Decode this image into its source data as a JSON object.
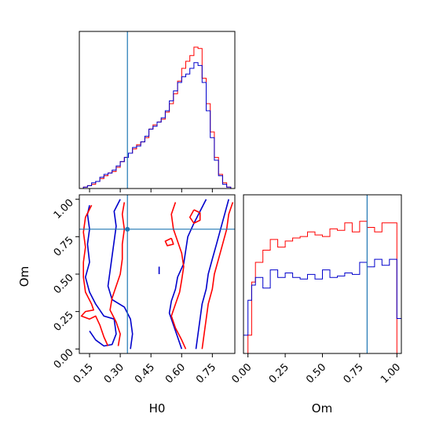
{
  "chart_data": {
    "type": "corner",
    "parameters": [
      "H0",
      "Om"
    ],
    "colors": {
      "red": "#ff0000",
      "blue": "#0000cc",
      "truth": "#1f77b4"
    },
    "truth": {
      "H0": 0.335,
      "Om": 0.8
    },
    "panels": {
      "H0_hist": {
        "xlim": [
          0.1,
          0.86
        ],
        "bin_edges": [
          0.1,
          0.12,
          0.14,
          0.16,
          0.18,
          0.2,
          0.22,
          0.24,
          0.26,
          0.28,
          0.3,
          0.32,
          0.34,
          0.36,
          0.38,
          0.4,
          0.42,
          0.44,
          0.46,
          0.48,
          0.5,
          0.52,
          0.54,
          0.56,
          0.58,
          0.6,
          0.62,
          0.64,
          0.66,
          0.68,
          0.7,
          0.72,
          0.74,
          0.76,
          0.78,
          0.8,
          0.82,
          0.84,
          0.86
        ],
        "series": [
          {
            "color": "red",
            "values": [
              0,
              0.01,
              0.02,
              0.03,
              0.05,
              0.07,
              0.09,
              0.11,
              0.12,
              0.15,
              0.19,
              0.22,
              0.25,
              0.28,
              0.31,
              0.33,
              0.36,
              0.42,
              0.45,
              0.47,
              0.49,
              0.54,
              0.6,
              0.67,
              0.76,
              0.85,
              0.9,
              0.94,
              1.0,
              0.99,
              0.78,
              0.6,
              0.4,
              0.22,
              0.1,
              0.04,
              0.01,
              0
            ]
          },
          {
            "color": "blue",
            "values": [
              0,
              0.01,
              0.02,
              0.04,
              0.05,
              0.08,
              0.1,
              0.11,
              0.13,
              0.16,
              0.19,
              0.22,
              0.25,
              0.29,
              0.3,
              0.33,
              0.37,
              0.42,
              0.44,
              0.47,
              0.5,
              0.55,
              0.62,
              0.69,
              0.75,
              0.79,
              0.81,
              0.85,
              0.89,
              0.87,
              0.75,
              0.55,
              0.36,
              0.2,
              0.09,
              0.03,
              0.01,
              0
            ]
          }
        ]
      },
      "Om_hist": {
        "xlim": [
          -0.03,
          1.03
        ],
        "bin_edges": [
          -0.03,
          0.0,
          0.025,
          0.05,
          0.1,
          0.15,
          0.2,
          0.25,
          0.3,
          0.35,
          0.4,
          0.45,
          0.5,
          0.55,
          0.6,
          0.65,
          0.7,
          0.75,
          0.8,
          0.85,
          0.9,
          0.95,
          1.0,
          1.03
        ],
        "series": [
          {
            "color": "red",
            "values": [
              0,
              0.12,
              0.47,
              0.6,
              0.68,
              0.75,
              0.7,
              0.74,
              0.76,
              0.77,
              0.8,
              0.78,
              0.77,
              0.82,
              0.81,
              0.86,
              0.8,
              0.87,
              0.83,
              0.8,
              0.86,
              0.86,
              0
            ]
          },
          {
            "color": "blue",
            "values": [
              0.12,
              0.35,
              0.45,
              0.5,
              0.43,
              0.55,
              0.5,
              0.53,
              0.5,
              0.49,
              0.52,
              0.49,
              0.55,
              0.5,
              0.51,
              0.53,
              0.52,
              0.6,
              0.57,
              0.62,
              0.58,
              0.62,
              0.23
            ]
          }
        ]
      },
      "joint": {
        "xlim": [
          0.1,
          0.86
        ],
        "ylim": [
          -0.03,
          1.03
        ],
        "contours": [
          {
            "color": "blue",
            "level": "inner",
            "points": [
              [
                0.15,
                0.96
              ],
              [
                0.14,
                0.9
              ],
              [
                0.15,
                0.8
              ],
              [
                0.14,
                0.7
              ],
              [
                0.15,
                0.58
              ],
              [
                0.13,
                0.48
              ],
              [
                0.15,
                0.38
              ],
              [
                0.18,
                0.3
              ],
              [
                0.22,
                0.22
              ],
              [
                0.27,
                0.2
              ],
              [
                0.28,
                0.1
              ],
              [
                0.26,
                0.03
              ],
              [
                0.22,
                0.02
              ],
              [
                0.18,
                0.06
              ],
              [
                0.15,
                0.12
              ]
            ]
          },
          {
            "color": "blue",
            "level": "outer",
            "points": [
              [
                0.3,
                1.0
              ],
              [
                0.27,
                0.92
              ],
              [
                0.28,
                0.82
              ],
              [
                0.27,
                0.72
              ],
              [
                0.26,
                0.62
              ],
              [
                0.25,
                0.52
              ],
              [
                0.24,
                0.42
              ],
              [
                0.26,
                0.33
              ],
              [
                0.32,
                0.28
              ],
              [
                0.35,
                0.2
              ],
              [
                0.36,
                0.1
              ],
              [
                0.35,
                0.0
              ]
            ]
          },
          {
            "color": "red",
            "level": "inner",
            "points": [
              [
                0.16,
                0.96
              ],
              [
                0.13,
                0.88
              ],
              [
                0.12,
                0.78
              ],
              [
                0.13,
                0.68
              ],
              [
                0.12,
                0.58
              ],
              [
                0.12,
                0.48
              ],
              [
                0.13,
                0.38
              ],
              [
                0.16,
                0.3
              ],
              [
                0.17,
                0.26
              ],
              [
                0.13,
                0.25
              ],
              [
                0.11,
                0.22
              ],
              [
                0.15,
                0.2
              ],
              [
                0.18,
                0.22
              ],
              [
                0.2,
                0.16
              ],
              [
                0.22,
                0.08
              ],
              [
                0.24,
                0.02
              ]
            ]
          },
          {
            "color": "red",
            "level": "outer",
            "points": [
              [
                0.32,
                0.98
              ],
              [
                0.31,
                0.9
              ],
              [
                0.32,
                0.8
              ],
              [
                0.31,
                0.7
              ],
              [
                0.31,
                0.6
              ],
              [
                0.3,
                0.5
              ],
              [
                0.28,
                0.42
              ],
              [
                0.26,
                0.34
              ],
              [
                0.25,
                0.26
              ],
              [
                0.28,
                0.18
              ],
              [
                0.3,
                0.1
              ],
              [
                0.29,
                0.02
              ]
            ]
          },
          {
            "color": "blue",
            "level": "right-inner",
            "points": [
              [
                0.72,
                1.0
              ],
              [
                0.69,
                0.92
              ],
              [
                0.66,
                0.84
              ],
              [
                0.63,
                0.75
              ],
              [
                0.62,
                0.66
              ],
              [
                0.61,
                0.57
              ],
              [
                0.58,
                0.48
              ],
              [
                0.57,
                0.4
              ],
              [
                0.55,
                0.32
              ],
              [
                0.54,
                0.24
              ],
              [
                0.56,
                0.16
              ],
              [
                0.58,
                0.08
              ],
              [
                0.6,
                0.0
              ]
            ]
          },
          {
            "color": "blue",
            "level": "right-outer",
            "points": [
              [
                0.83,
                1.0
              ],
              [
                0.81,
                0.9
              ],
              [
                0.79,
                0.8
              ],
              [
                0.77,
                0.7
              ],
              [
                0.75,
                0.6
              ],
              [
                0.73,
                0.5
              ],
              [
                0.72,
                0.4
              ],
              [
                0.7,
                0.3
              ],
              [
                0.69,
                0.2
              ],
              [
                0.68,
                0.1
              ],
              [
                0.67,
                0.0
              ]
            ]
          },
          {
            "color": "red",
            "level": "right-inner",
            "points": [
              [
                0.57,
                0.98
              ],
              [
                0.55,
                0.9
              ],
              [
                0.56,
                0.8
              ],
              [
                0.58,
                0.72
              ],
              [
                0.6,
                0.64
              ],
              [
                0.61,
                0.55
              ],
              [
                0.6,
                0.46
              ],
              [
                0.59,
                0.38
              ],
              [
                0.57,
                0.3
              ],
              [
                0.55,
                0.22
              ],
              [
                0.57,
                0.14
              ],
              [
                0.6,
                0.06
              ],
              [
                0.62,
                0.0
              ]
            ]
          },
          {
            "color": "red",
            "level": "right-outer",
            "points": [
              [
                0.85,
                0.98
              ],
              [
                0.83,
                0.9
              ],
              [
                0.82,
                0.8
              ],
              [
                0.8,
                0.7
              ],
              [
                0.78,
                0.6
              ],
              [
                0.76,
                0.5
              ],
              [
                0.75,
                0.4
              ],
              [
                0.73,
                0.3
              ],
              [
                0.72,
                0.2
              ],
              [
                0.71,
                0.1
              ],
              [
                0.7,
                0.0
              ]
            ]
          },
          {
            "color": "red",
            "level": "blob",
            "points": [
              [
                0.66,
                0.93
              ],
              [
                0.64,
                0.88
              ],
              [
                0.66,
                0.84
              ],
              [
                0.69,
                0.86
              ],
              [
                0.69,
                0.91
              ],
              [
                0.66,
                0.93
              ]
            ]
          },
          {
            "color": "red",
            "level": "blob",
            "points": [
              [
                0.55,
                0.74
              ],
              [
                0.52,
                0.72
              ],
              [
                0.53,
                0.69
              ],
              [
                0.56,
                0.7
              ],
              [
                0.55,
                0.74
              ]
            ]
          },
          {
            "color": "blue",
            "level": "blob",
            "points": [
              [
                0.49,
                0.5
              ],
              [
                0.49,
                0.55
              ]
            ]
          }
        ]
      }
    },
    "axes": {
      "H0": {
        "label": "H0",
        "ticks": [
          0.15,
          0.3,
          0.45,
          0.6,
          0.75
        ],
        "tick_labels": [
          "0.15",
          "0.30",
          "0.45",
          "0.60",
          "0.75"
        ]
      },
      "Om": {
        "label": "Om",
        "ticks": [
          0.0,
          0.25,
          0.5,
          0.75,
          1.0
        ],
        "tick_labels": [
          "0.00",
          "0.25",
          "0.50",
          "0.75",
          "1.00"
        ]
      }
    }
  }
}
